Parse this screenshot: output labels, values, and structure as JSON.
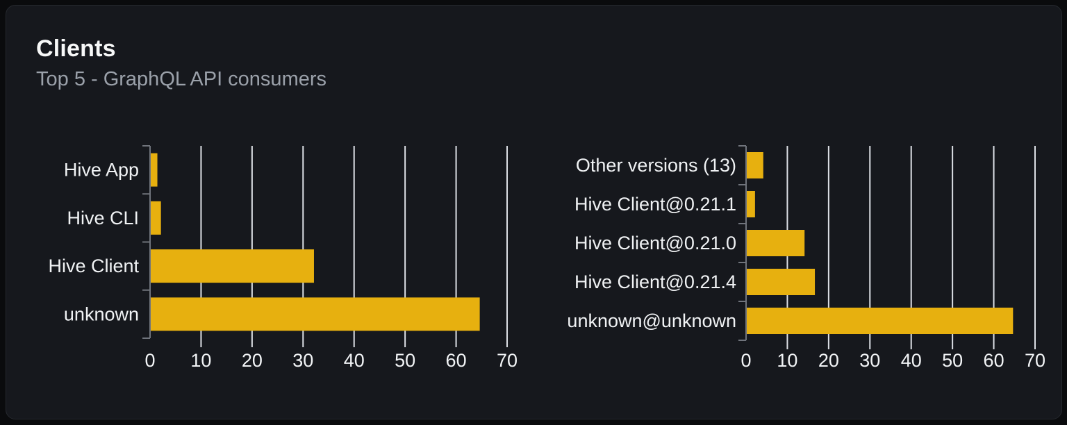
{
  "card": {
    "title": "Clients",
    "subtitle": "Top 5 - GraphQL API consumers"
  },
  "colors": {
    "page_bg": "#0a0b0d",
    "card_bg": "#16181d",
    "card_border": "#26292f",
    "title": "#f7f8f8",
    "subtitle": "#9ba1aa",
    "bar": "#e7b00f",
    "grid": "#dde0e6",
    "axis": "#70747c",
    "tick_label": "#f2f4f6",
    "category_label": "#f0f2f4"
  },
  "chart_data": [
    {
      "type": "bar",
      "orientation": "horizontal",
      "name": "clients-by-name",
      "title": "",
      "categories": [
        "Hive App",
        "Hive CLI",
        "Hive Client",
        "unknown"
      ],
      "values": [
        1.3,
        2,
        32,
        64.5
      ],
      "xlabel": "",
      "ylabel": "",
      "xlim": [
        0,
        70
      ],
      "xticks": [
        0,
        10,
        20,
        30,
        40,
        50,
        60,
        70
      ],
      "grid": true,
      "legend": false,
      "bar_color": "#e7b00f"
    },
    {
      "type": "bar",
      "orientation": "horizontal",
      "name": "clients-by-version",
      "title": "",
      "categories": [
        "Other versions (13)",
        "Hive Client@0.21.1",
        "Hive Client@0.21.0",
        "Hive Client@0.21.4",
        "unknown@unknown"
      ],
      "values": [
        4,
        2,
        14,
        16.5,
        64.5
      ],
      "xlabel": "",
      "ylabel": "",
      "xlim": [
        0,
        70
      ],
      "xticks": [
        0,
        10,
        20,
        30,
        40,
        50,
        60,
        70
      ],
      "grid": true,
      "legend": false,
      "bar_color": "#e7b00f"
    }
  ]
}
